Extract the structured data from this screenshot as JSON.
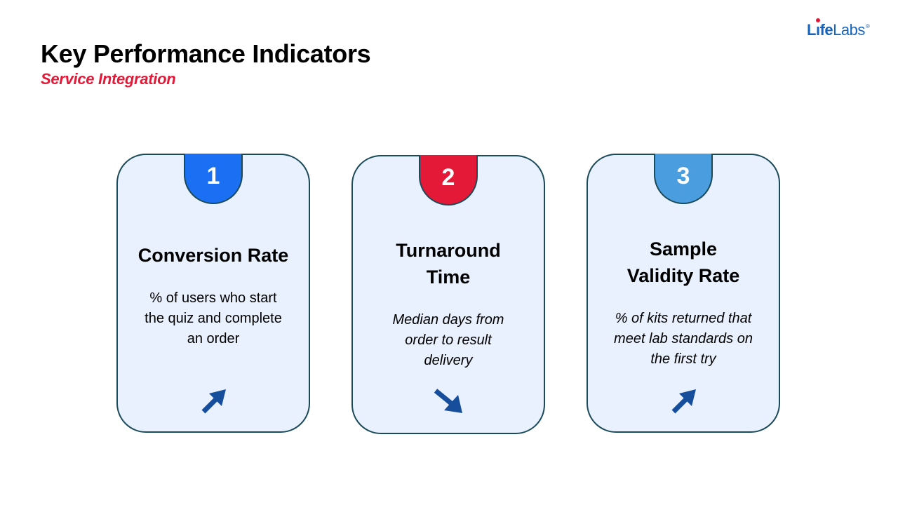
{
  "header": {
    "title": "Key Performance Indicators",
    "subtitle": "Service Integration"
  },
  "logo": {
    "brand_part1": "L",
    "brand_part2": "fe",
    "brand_part3": "Labs",
    "registered": "®"
  },
  "colors": {
    "accent_red": "#e31937",
    "badge_1": "#1a6ff2",
    "badge_2": "#e31937",
    "badge_3": "#4a9ee0",
    "card_bg": "#e8f1fd",
    "card_border": "#1b4a5a",
    "arrow": "#164e9c"
  },
  "kpis": [
    {
      "number": "1",
      "title_line1": "Conversion Rate",
      "title_line2": "",
      "desc_line1": "% of users who start",
      "desc_line2": "the quiz and complete",
      "desc_line3": "an order",
      "trend": "up",
      "trend_icon": "arrow-up-right-icon"
    },
    {
      "number": "2",
      "title_line1": "Turnaround",
      "title_line2": "Time",
      "desc_line1": "Median days from",
      "desc_line2": "order to result",
      "desc_line3": "delivery",
      "trend": "down",
      "trend_icon": "arrow-down-right-icon"
    },
    {
      "number": "3",
      "title_line1": "Sample",
      "title_line2": "Validity Rate",
      "desc_line1": "% of kits returned that",
      "desc_line2": "meet lab standards on",
      "desc_line3": "the first try",
      "trend": "up",
      "trend_icon": "arrow-up-right-icon"
    }
  ]
}
